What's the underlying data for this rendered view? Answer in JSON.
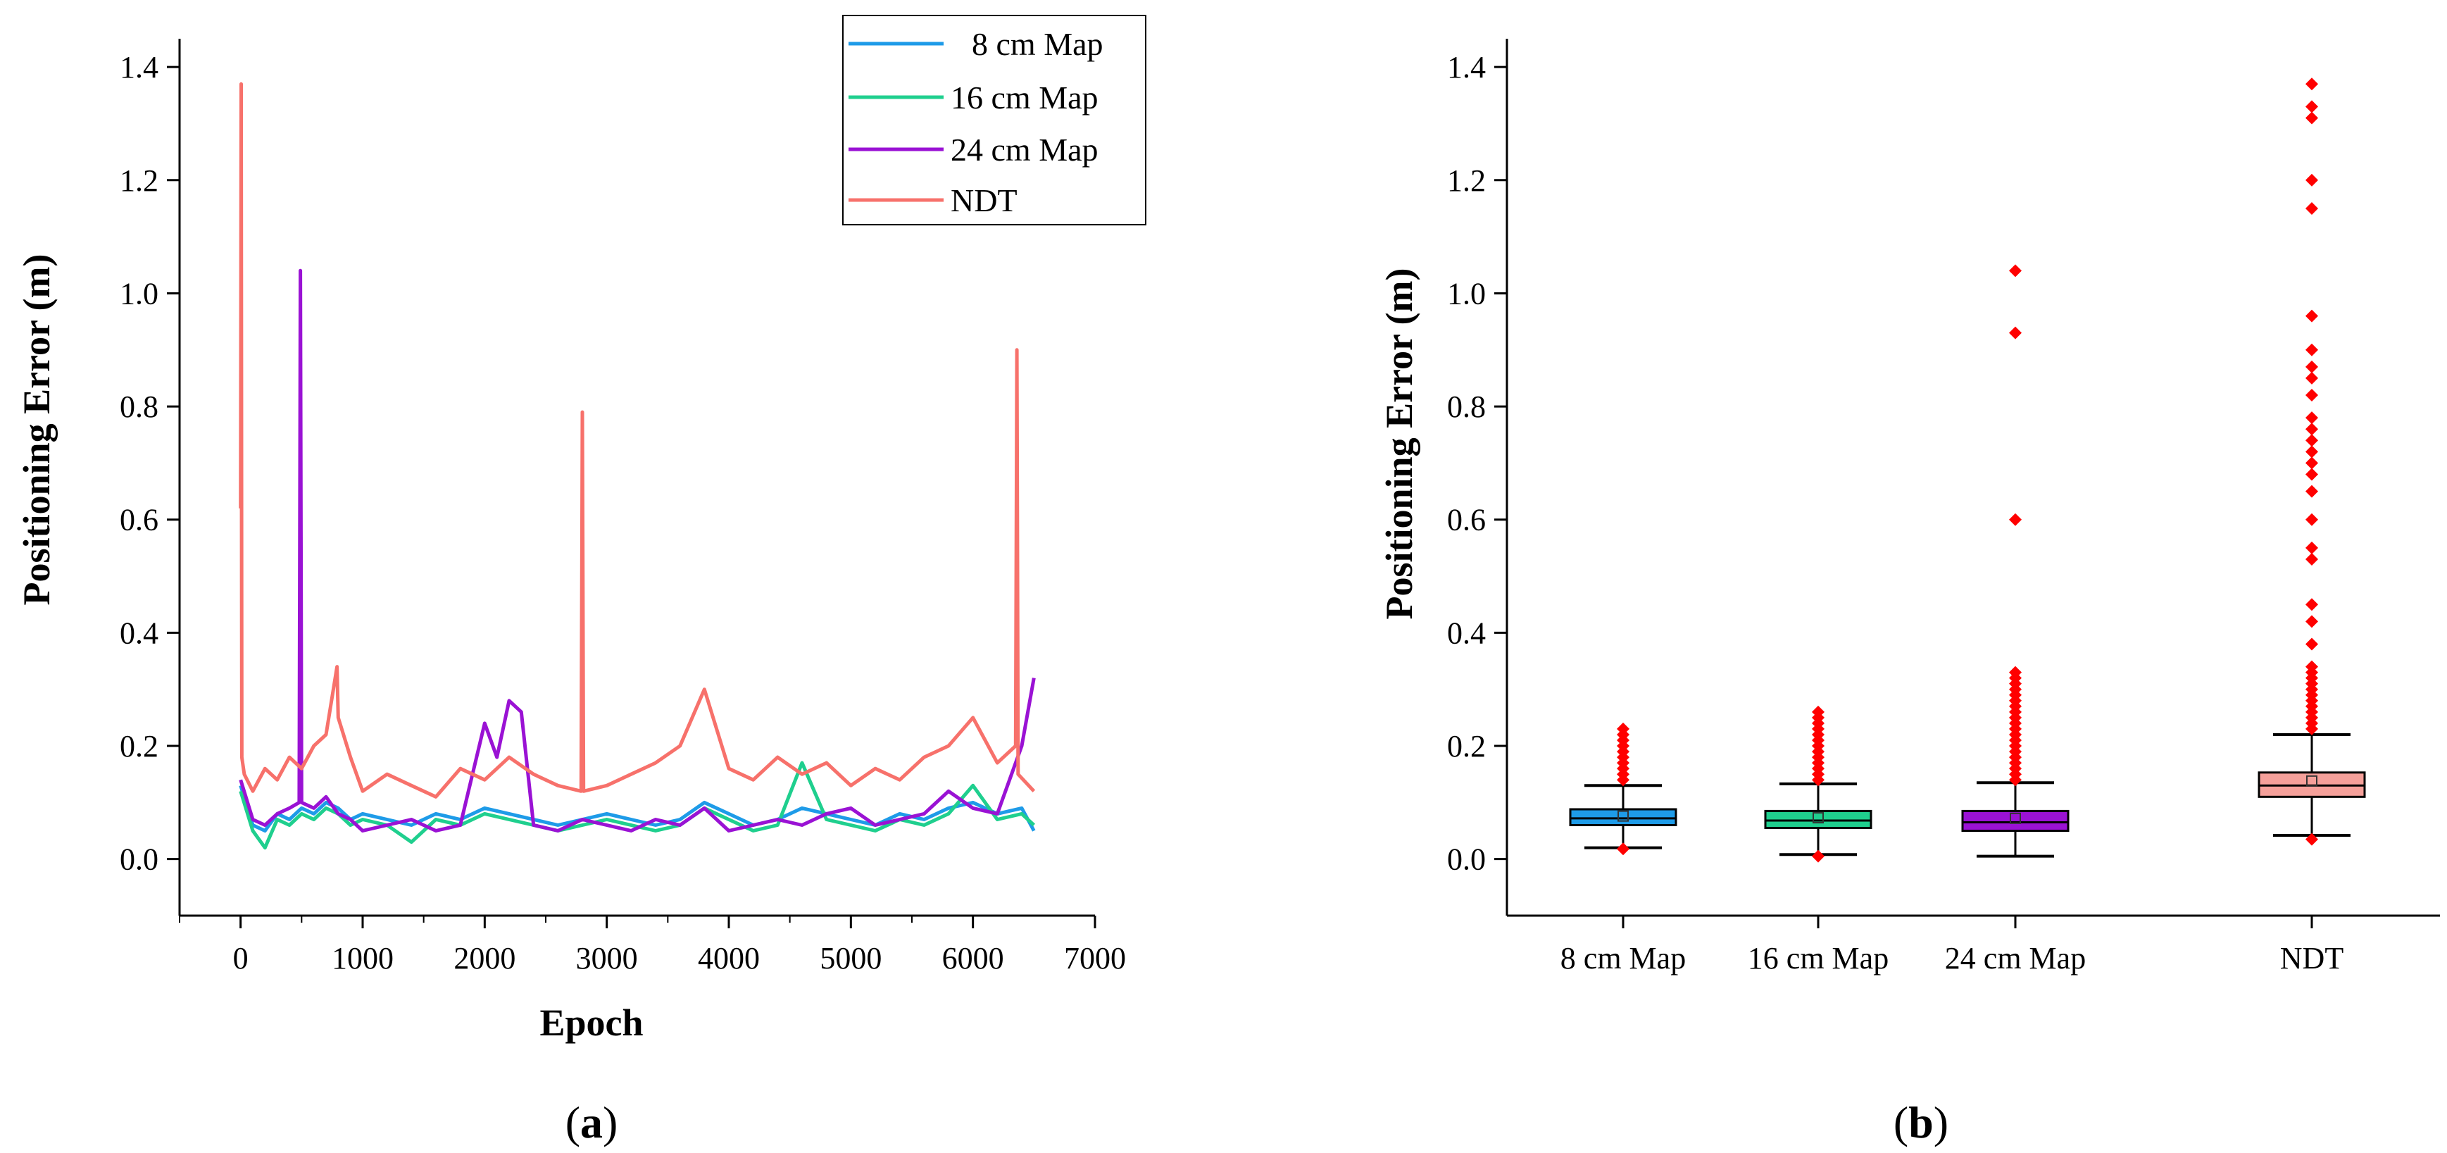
{
  "chart_data": [
    {
      "type": "line",
      "panel_label_open": "(",
      "panel_label_letter": "a",
      "panel_label_close": ")",
      "xlabel": "Epoch",
      "ylabel": "Positioning Error (m)",
      "xlim": [
        -500,
        7000
      ],
      "ylim": [
        -0.1,
        1.45
      ],
      "xticks": [
        0,
        1000,
        2000,
        3000,
        4000,
        5000,
        6000,
        7000
      ],
      "xtick_labels": [
        "0",
        "1000",
        "2000",
        "3000",
        "4000",
        "5000",
        "6000",
        "7000"
      ],
      "yticks": [
        0.0,
        0.2,
        0.4,
        0.6,
        0.8,
        1.0,
        1.2,
        1.4
      ],
      "ytick_labels": [
        "0.0",
        "0.2",
        "0.4",
        "0.6",
        "0.8",
        "1.0",
        "1.2",
        "1.4"
      ],
      "legend_position": "top-right",
      "series": [
        {
          "name": "8 cm Map",
          "color": "#1e9be8",
          "x": [
            0,
            100,
            200,
            300,
            400,
            500,
            600,
            700,
            800,
            900,
            1000,
            1200,
            1400,
            1600,
            1800,
            2000,
            2200,
            2400,
            2600,
            2800,
            3000,
            3200,
            3400,
            3600,
            3800,
            4000,
            4200,
            4400,
            4600,
            4800,
            5000,
            5200,
            5400,
            5600,
            5800,
            6000,
            6200,
            6400,
            6500
          ],
          "values": [
            0.13,
            0.06,
            0.05,
            0.08,
            0.07,
            0.09,
            0.08,
            0.1,
            0.09,
            0.07,
            0.08,
            0.07,
            0.06,
            0.08,
            0.07,
            0.09,
            0.08,
            0.07,
            0.06,
            0.07,
            0.08,
            0.07,
            0.06,
            0.07,
            0.1,
            0.08,
            0.06,
            0.07,
            0.09,
            0.08,
            0.07,
            0.06,
            0.08,
            0.07,
            0.09,
            0.1,
            0.08,
            0.09,
            0.05
          ]
        },
        {
          "name": "16 cm Map",
          "color": "#1fcf8e",
          "x": [
            0,
            100,
            200,
            300,
            400,
            500,
            600,
            700,
            800,
            900,
            1000,
            1200,
            1400,
            1600,
            1800,
            2000,
            2200,
            2400,
            2600,
            2800,
            3000,
            3200,
            3400,
            3600,
            3800,
            4000,
            4200,
            4400,
            4600,
            4800,
            5000,
            5200,
            5400,
            5600,
            5800,
            6000,
            6200,
            6400,
            6500
          ],
          "values": [
            0.12,
            0.05,
            0.02,
            0.07,
            0.06,
            0.08,
            0.07,
            0.09,
            0.08,
            0.06,
            0.07,
            0.06,
            0.03,
            0.07,
            0.06,
            0.08,
            0.07,
            0.06,
            0.05,
            0.06,
            0.07,
            0.06,
            0.05,
            0.06,
            0.09,
            0.07,
            0.05,
            0.06,
            0.17,
            0.07,
            0.06,
            0.05,
            0.07,
            0.06,
            0.08,
            0.13,
            0.07,
            0.08,
            0.06
          ]
        },
        {
          "name": "24 cm Map",
          "color": "#9a12d4",
          "x": [
            0,
            100,
            200,
            300,
            400,
            480,
            490,
            500,
            600,
            700,
            800,
            900,
            1000,
            1200,
            1400,
            1600,
            1800,
            2000,
            2100,
            2200,
            2300,
            2400,
            2600,
            2800,
            3000,
            3200,
            3400,
            3600,
            3800,
            4000,
            4200,
            4400,
            4600,
            4800,
            5000,
            5200,
            5400,
            5600,
            5800,
            6000,
            6200,
            6400,
            6500
          ],
          "values": [
            0.14,
            0.07,
            0.06,
            0.08,
            0.09,
            0.1,
            1.04,
            0.1,
            0.09,
            0.11,
            0.08,
            0.07,
            0.05,
            0.06,
            0.07,
            0.05,
            0.06,
            0.24,
            0.18,
            0.28,
            0.26,
            0.06,
            0.05,
            0.07,
            0.06,
            0.05,
            0.07,
            0.06,
            0.09,
            0.05,
            0.06,
            0.07,
            0.06,
            0.08,
            0.09,
            0.06,
            0.07,
            0.08,
            0.12,
            0.09,
            0.08,
            0.2,
            0.32
          ]
        },
        {
          "name": "NDT",
          "color": "#f7716b",
          "x": [
            0,
            5,
            10,
            30,
            100,
            200,
            300,
            400,
            500,
            600,
            700,
            790,
            800,
            900,
            1000,
            1200,
            1400,
            1600,
            1800,
            2000,
            2200,
            2400,
            2600,
            2790,
            2800,
            2810,
            3000,
            3200,
            3400,
            3600,
            3800,
            4000,
            4200,
            4400,
            4600,
            4800,
            5000,
            5200,
            5400,
            5600,
            5800,
            6000,
            6200,
            6350,
            6360,
            6370,
            6500
          ],
          "values": [
            0.62,
            1.37,
            0.18,
            0.15,
            0.12,
            0.16,
            0.14,
            0.18,
            0.16,
            0.2,
            0.22,
            0.34,
            0.25,
            0.18,
            0.12,
            0.15,
            0.13,
            0.11,
            0.16,
            0.14,
            0.18,
            0.15,
            0.13,
            0.12,
            0.79,
            0.12,
            0.13,
            0.15,
            0.17,
            0.2,
            0.3,
            0.16,
            0.14,
            0.18,
            0.15,
            0.17,
            0.13,
            0.16,
            0.14,
            0.18,
            0.2,
            0.25,
            0.17,
            0.2,
            0.9,
            0.15,
            0.12
          ]
        }
      ]
    },
    {
      "type": "box",
      "panel_label_open": "(",
      "panel_label_letter": "b",
      "panel_label_close": ")",
      "xlabel": "",
      "ylabel": "Positioning Error (m)",
      "ylim": [
        -0.1,
        1.45
      ],
      "yticks": [
        0.0,
        0.2,
        0.4,
        0.6,
        0.8,
        1.0,
        1.2,
        1.4
      ],
      "ytick_labels": [
        "0.0",
        "0.2",
        "0.4",
        "0.6",
        "0.8",
        "1.0",
        "1.2",
        "1.4"
      ],
      "categories": [
        "8 cm Map",
        "16 cm Map",
        "24 cm Map",
        "NDT"
      ],
      "outlier_color": "#ff0000",
      "boxes": [
        {
          "name": "8 cm Map",
          "color": "#1e9be8",
          "whisker_low": 0.02,
          "q1": 0.06,
          "median": 0.072,
          "mean": 0.076,
          "q3": 0.088,
          "whisker_high": 0.13,
          "outliers": [
            0.018,
            0.14,
            0.15,
            0.16,
            0.17,
            0.18,
            0.19,
            0.2,
            0.21,
            0.22,
            0.23
          ]
        },
        {
          "name": "16 cm Map",
          "color": "#1fcf8e",
          "whisker_low": 0.008,
          "q1": 0.055,
          "median": 0.068,
          "mean": 0.073,
          "q3": 0.085,
          "whisker_high": 0.133,
          "outliers": [
            0.005,
            0.14,
            0.15,
            0.16,
            0.17,
            0.18,
            0.19,
            0.2,
            0.21,
            0.22,
            0.23,
            0.24,
            0.25,
            0.26
          ]
        },
        {
          "name": "24 cm Map",
          "color": "#9a12d4",
          "whisker_low": 0.005,
          "q1": 0.05,
          "median": 0.065,
          "mean": 0.072,
          "q3": 0.085,
          "whisker_high": 0.135,
          "outliers": [
            0.14,
            0.15,
            0.16,
            0.17,
            0.18,
            0.19,
            0.2,
            0.21,
            0.22,
            0.23,
            0.24,
            0.25,
            0.26,
            0.27,
            0.28,
            0.29,
            0.3,
            0.31,
            0.32,
            0.33,
            0.6,
            0.93,
            1.04
          ]
        },
        {
          "name": "NDT",
          "color": "#f5a09a",
          "whisker_low": 0.042,
          "q1": 0.11,
          "median": 0.13,
          "mean": 0.138,
          "q3": 0.153,
          "whisker_high": 0.22,
          "outliers": [
            0.035,
            0.23,
            0.24,
            0.25,
            0.26,
            0.27,
            0.28,
            0.29,
            0.3,
            0.31,
            0.32,
            0.33,
            0.34,
            0.38,
            0.42,
            0.45,
            0.53,
            0.55,
            0.6,
            0.65,
            0.68,
            0.7,
            0.72,
            0.74,
            0.76,
            0.78,
            0.82,
            0.85,
            0.87,
            0.9,
            0.96,
            1.15,
            1.2,
            1.31,
            1.33,
            1.37
          ]
        }
      ]
    }
  ]
}
